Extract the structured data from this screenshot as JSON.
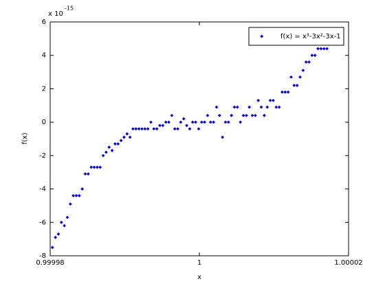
{
  "chart_data": {
    "type": "scatter",
    "xlabel": "x",
    "ylabel": "f(x)",
    "y_multiplier": {
      "base": "x 10",
      "exponent": "-15"
    },
    "xlim": [
      0.99998,
      1.00002
    ],
    "xticks": [
      0.99998,
      1,
      1.00002
    ],
    "ylim": [
      -8,
      6
    ],
    "yticks": [
      -8,
      -6,
      -4,
      -2,
      0,
      2,
      4,
      6
    ],
    "grid": false,
    "legend": "top-right",
    "series": [
      {
        "name": "f(x) = x³-3x²-3x-1",
        "color": "#0000ff",
        "x": [
          0.9999803,
          0.9999807,
          0.9999811,
          0.9999815,
          0.9999819,
          0.9999823,
          0.9999827,
          0.9999831,
          0.9999835,
          0.9999839,
          0.9999843,
          0.9999847,
          0.9999851,
          0.9999855,
          0.9999859,
          0.9999863,
          0.9999867,
          0.9999871,
          0.9999875,
          0.9999879,
          0.9999883,
          0.9999887,
          0.9999891,
          0.9999895,
          0.9999899,
          0.9999903,
          0.9999907,
          0.9999911,
          0.9999915,
          0.9999919,
          0.9999923,
          0.9999927,
          0.9999931,
          0.9999935,
          0.9999939,
          0.9999943,
          0.9999947,
          0.9999951,
          0.9999955,
          0.9999959,
          0.9999963,
          0.9999967,
          0.9999971,
          0.9999975,
          0.9999979,
          0.9999983,
          0.9999987,
          0.9999991,
          0.9999995,
          0.9999999,
          1.0000003,
          1.0000007,
          1.0000011,
          1.0000015,
          1.0000019,
          1.0000023,
          1.0000027,
          1.0000031,
          1.0000035,
          1.0000039,
          1.0000043,
          1.0000047,
          1.0000051,
          1.0000055,
          1.0000059,
          1.0000063,
          1.0000067,
          1.0000071,
          1.0000075,
          1.0000079,
          1.0000083,
          1.0000087,
          1.0000091,
          1.0000095,
          1.0000099,
          1.0000103,
          1.0000107,
          1.0000111,
          1.0000115,
          1.0000119,
          1.0000123,
          1.0000127,
          1.0000131,
          1.0000135,
          1.0000139,
          1.0000143,
          1.0000147,
          1.0000151,
          1.0000155,
          1.0000159,
          1.0000163,
          1.0000167,
          1.0000171
        ],
        "values": [
          -7.5,
          -6.9,
          -6.7,
          -6.0,
          -6.2,
          -5.7,
          -4.9,
          -4.4,
          -4.4,
          -4.4,
          -4.0,
          -3.1,
          -3.1,
          -2.7,
          -2.7,
          -2.7,
          -2.7,
          -2.0,
          -1.8,
          -1.5,
          -1.7,
          -1.3,
          -1.3,
          -1.1,
          -0.9,
          -0.7,
          -0.9,
          -0.4,
          -0.4,
          -0.4,
          -0.4,
          -0.4,
          -0.4,
          0,
          -0.4,
          -0.4,
          -0.2,
          -0.2,
          0,
          0,
          0.4,
          -0.4,
          -0.4,
          0,
          0.2,
          -0.2,
          -0.4,
          0,
          0,
          -0.4,
          0,
          0,
          0.4,
          0,
          0,
          0.9,
          0.4,
          -0.9,
          0,
          0,
          0.4,
          0.9,
          0.9,
          0,
          0.4,
          0.4,
          0.9,
          0.4,
          0.4,
          1.3,
          0.9,
          0.4,
          0.9,
          1.3,
          1.3,
          0.9,
          0.9,
          1.8,
          1.8,
          1.8,
          2.7,
          2.2,
          2.2,
          2.7,
          3.1,
          3.6,
          3.6,
          4.0,
          4.0,
          4.4,
          4.4,
          4.4,
          4.4
        ]
      }
    ]
  }
}
